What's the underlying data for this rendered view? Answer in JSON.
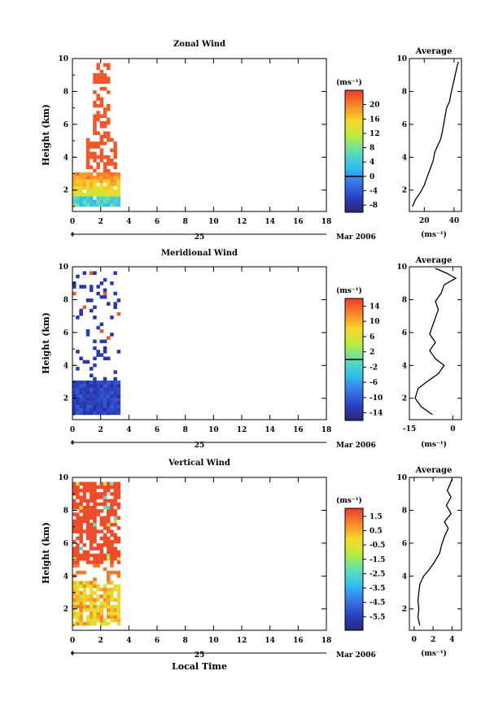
{
  "figure": {
    "x_axis_label": "Local Time",
    "date_label": "Mar 2006",
    "day_label": "25"
  },
  "chart_data": [
    {
      "type": "heatmap",
      "title": "Zonal Wind",
      "ylabel": "Height (km)",
      "xlim": [
        0,
        18
      ],
      "ylim": [
        0.7,
        10
      ],
      "xticks": [
        "0",
        "2",
        "4",
        "6",
        "8",
        "10",
        "12",
        "14",
        "16",
        "18"
      ],
      "yticks": [
        "2",
        "4",
        "6",
        "8",
        "10"
      ],
      "colorbar": {
        "unit": "(ms⁻¹)",
        "range": [
          -10,
          24
        ],
        "ticks": [
          "20",
          "16",
          "12",
          "8",
          "4",
          "0",
          "-4",
          "-8"
        ],
        "ticks_values": [
          20,
          16,
          12,
          8,
          4,
          0,
          -4,
          -8
        ],
        "zero_line": 0
      },
      "data_extent": {
        "time_hours": [
          0,
          3.3
        ],
        "height_km": [
          1.0,
          9.7
        ]
      },
      "average_profile": {
        "title": "Average",
        "xlabel": "(ms⁻¹)",
        "xlim": [
          10,
          45
        ],
        "xticks": [
          "20",
          "40"
        ],
        "xticks_values": [
          20,
          40
        ],
        "yticks": [
          "2",
          "4",
          "6",
          "8",
          "10"
        ],
        "profile": [
          [
            12,
            1
          ],
          [
            14,
            1.4
          ],
          [
            17,
            1.8
          ],
          [
            20,
            2.3
          ],
          [
            22,
            2.8
          ],
          [
            24,
            3.3
          ],
          [
            26,
            3.8
          ],
          [
            27,
            4.3
          ],
          [
            29,
            4.7
          ],
          [
            31,
            5.1
          ],
          [
            32,
            5.5
          ],
          [
            33,
            6.0
          ],
          [
            34,
            6.5
          ],
          [
            35,
            7.0
          ],
          [
            37,
            7.4
          ],
          [
            38,
            7.9
          ],
          [
            39,
            8.3
          ],
          [
            40,
            8.7
          ],
          [
            41,
            9.1
          ],
          [
            42,
            9.5
          ],
          [
            43,
            9.8
          ]
        ]
      }
    },
    {
      "type": "heatmap",
      "title": "Meridional Wind",
      "ylabel": "Height (km)",
      "xlim": [
        0,
        18
      ],
      "ylim": [
        0.7,
        10
      ],
      "xticks": [
        "0",
        "2",
        "4",
        "6",
        "8",
        "10",
        "12",
        "14",
        "16",
        "18"
      ],
      "yticks": [
        "2",
        "4",
        "6",
        "8",
        "10"
      ],
      "colorbar": {
        "unit": "(ms⁻¹)",
        "range": [
          -16,
          16
        ],
        "ticks": [
          "14",
          "10",
          "6",
          "2",
          "-2",
          "-6",
          "-10",
          "-14"
        ],
        "ticks_values": [
          14,
          10,
          6,
          2,
          -2,
          -6,
          -10,
          -14
        ],
        "zero_line": 0
      },
      "data_extent": {
        "time_hours": [
          0,
          3.3
        ],
        "height_km": [
          1.0,
          9.7
        ]
      },
      "average_profile": {
        "title": "Average",
        "xlabel": "(ms⁻¹)",
        "xlim": [
          -15,
          3
        ],
        "xticks": [
          "-15",
          "0"
        ],
        "xticks_values": [
          -15,
          0
        ],
        "yticks": [
          "2",
          "4",
          "6",
          "8",
          "10"
        ],
        "profile": [
          [
            -7,
            1
          ],
          [
            -11,
            1.5
          ],
          [
            -13,
            2.0
          ],
          [
            -12,
            2.6
          ],
          [
            -9,
            3.0
          ],
          [
            -5,
            3.5
          ],
          [
            -3,
            4.0
          ],
          [
            -6,
            4.4
          ],
          [
            -8,
            4.9
          ],
          [
            -6,
            5.4
          ],
          [
            -8,
            5.9
          ],
          [
            -7,
            6.4
          ],
          [
            -6,
            6.9
          ],
          [
            -5,
            7.4
          ],
          [
            -6,
            7.9
          ],
          [
            -4,
            8.4
          ],
          [
            -3,
            8.9
          ],
          [
            1,
            9.3
          ],
          [
            -2,
            9.6
          ],
          [
            -6,
            9.9
          ]
        ]
      }
    },
    {
      "type": "heatmap",
      "title": "Vertical Wind",
      "ylabel": "Height (km)",
      "xlabel": "Local Time",
      "xlim": [
        0,
        18
      ],
      "ylim": [
        0.7,
        10
      ],
      "xticks": [
        "0",
        "2",
        "4",
        "6",
        "8",
        "10",
        "12",
        "14",
        "16",
        "18"
      ],
      "yticks": [
        "2",
        "4",
        "6",
        "8",
        "10"
      ],
      "colorbar": {
        "unit": "(ms⁻¹)",
        "range": [
          -6.5,
          2
        ],
        "ticks": [
          "1.5",
          "0.5",
          "-0.5",
          "-1.5",
          "-2.5",
          "-3.5",
          "-4.5",
          "-5.5"
        ],
        "ticks_values": [
          1.5,
          0.5,
          -0.5,
          -1.5,
          -2.5,
          -3.5,
          -4.5,
          -5.5
        ]
      },
      "data_extent": {
        "time_hours": [
          0,
          3.3
        ],
        "height_km": [
          1.0,
          9.7
        ]
      },
      "average_profile": {
        "title": "Average",
        "xlabel": "(ms⁻¹)",
        "xlim": [
          -0.5,
          5
        ],
        "xticks": [
          "0",
          "2",
          "4"
        ],
        "xticks_values": [
          0,
          2,
          4
        ],
        "yticks": [
          "2",
          "4",
          "6",
          "8",
          "10"
        ],
        "profile": [
          [
            0.6,
            1
          ],
          [
            0.4,
            1.5
          ],
          [
            0.5,
            2.0
          ],
          [
            0.4,
            2.5
          ],
          [
            0.5,
            3.0
          ],
          [
            0.6,
            3.5
          ],
          [
            1.0,
            4.0
          ],
          [
            1.6,
            4.4
          ],
          [
            2.2,
            4.9
          ],
          [
            2.7,
            5.4
          ],
          [
            2.9,
            5.9
          ],
          [
            3.2,
            6.4
          ],
          [
            3.6,
            6.9
          ],
          [
            3.2,
            7.3
          ],
          [
            3.9,
            7.8
          ],
          [
            3.4,
            8.3
          ],
          [
            3.9,
            8.8
          ],
          [
            3.5,
            9.2
          ],
          [
            3.8,
            9.6
          ],
          [
            4.0,
            9.9
          ]
        ]
      }
    }
  ]
}
